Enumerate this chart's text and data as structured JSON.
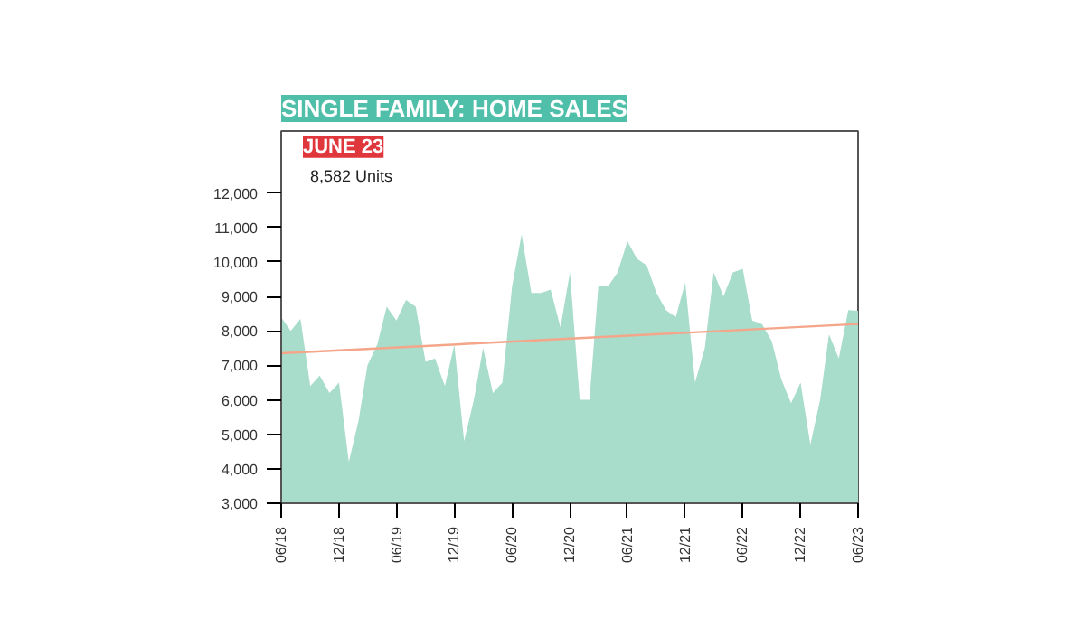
{
  "chart_data": {
    "type": "area",
    "title": "SINGLE FAMILY: HOME SALES",
    "x": [
      "2018-06",
      "2018-07",
      "2018-08",
      "2018-09",
      "2018-10",
      "2018-11",
      "2018-12",
      "2019-01",
      "2019-02",
      "2019-03",
      "2019-04",
      "2019-05",
      "2019-06",
      "2019-07",
      "2019-08",
      "2019-09",
      "2019-10",
      "2019-11",
      "2019-12",
      "2020-01",
      "2020-02",
      "2020-03",
      "2020-04",
      "2020-05",
      "2020-06",
      "2020-07",
      "2020-08",
      "2020-09",
      "2020-10",
      "2020-11",
      "2020-12",
      "2021-01",
      "2021-02",
      "2021-03",
      "2021-04",
      "2021-05",
      "2021-06",
      "2021-07",
      "2021-08",
      "2021-09",
      "2021-10",
      "2021-11",
      "2021-12",
      "2022-01",
      "2022-02",
      "2022-03",
      "2022-04",
      "2022-05",
      "2022-06",
      "2022-07",
      "2022-08",
      "2022-09",
      "2022-10",
      "2022-11",
      "2022-12",
      "2023-01",
      "2023-02",
      "2023-03",
      "2023-04",
      "2023-05",
      "2023-06"
    ],
    "series": [
      {
        "color": "#a8dccb",
        "values": [
          8400,
          8000,
          8350,
          6400,
          6700,
          6200,
          6500,
          4200,
          5400,
          7000,
          7600,
          8700,
          8300,
          8900,
          8700,
          7100,
          7200,
          6400,
          7600,
          4800,
          6000,
          7500,
          6200,
          6500,
          9300,
          10800,
          9100,
          9100,
          9200,
          8100,
          9700,
          6000,
          6000,
          9300,
          9300,
          9700,
          10600,
          10100,
          9900,
          9100,
          8600,
          8400,
          9400,
          6500,
          7500,
          9700,
          9000,
          9700,
          9800,
          8300,
          8200,
          7700,
          6600,
          5900,
          6500,
          4700,
          6000,
          7900,
          7200,
          8600,
          8582
        ]
      },
      {
        "type": "line",
        "color": "#f4a58a",
        "x": [
          "2018-06",
          "2023-06"
        ],
        "values": [
          7350,
          8200
        ]
      }
    ],
    "xlim": [
      "2018-06",
      "2023-06"
    ],
    "xticks": [
      {
        "value": "2018-06",
        "label": "06/18"
      },
      {
        "value": "2018-12",
        "label": "12/18"
      },
      {
        "value": "2019-06",
        "label": "06/19"
      },
      {
        "value": "2019-12",
        "label": "12/19"
      },
      {
        "value": "2020-06",
        "label": "06/20"
      },
      {
        "value": "2020-12",
        "label": "12/20"
      },
      {
        "value": "2021-06",
        "label": "06/21"
      },
      {
        "value": "2021-12",
        "label": "12/21"
      },
      {
        "value": "2022-06",
        "label": "06/22"
      },
      {
        "value": "2022-12",
        "label": "12/22"
      },
      {
        "value": "2023-06",
        "label": "06/23"
      }
    ],
    "ylim": [
      3000,
      13800
    ],
    "yticks": [
      {
        "value": 3000,
        "label": "3,000"
      },
      {
        "value": 4000,
        "label": "4,000"
      },
      {
        "value": 5000,
        "label": "5,000"
      },
      {
        "value": 6000,
        "label": "6,000"
      },
      {
        "value": 7000,
        "label": "7,000"
      },
      {
        "value": 8000,
        "label": "8,000"
      },
      {
        "value": 9000,
        "label": "9,000"
      },
      {
        "value": 10000,
        "label": "10,000"
      },
      {
        "value": 11000,
        "label": "11,000"
      },
      {
        "value": 12000,
        "label": "12,000"
      }
    ],
    "annotations": [
      "JUNE 23",
      "8,582 Units"
    ]
  }
}
